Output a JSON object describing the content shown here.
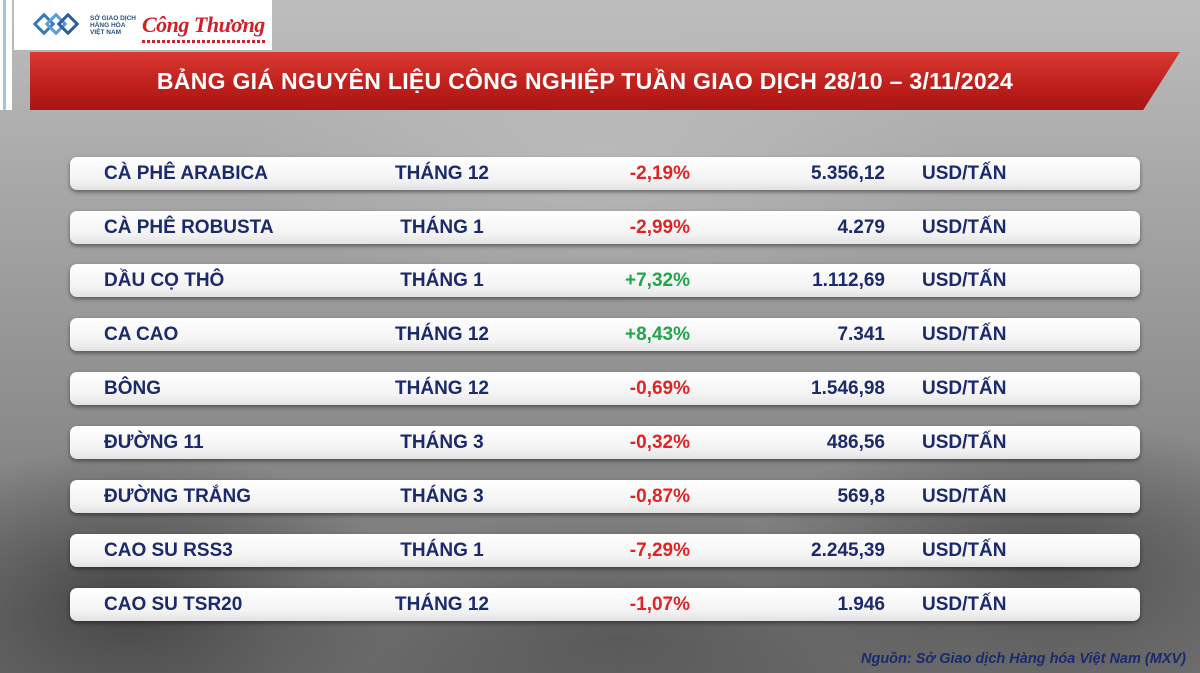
{
  "header": {
    "logo_sgd_text": "SỞ GIAO DỊCH HÀNG HÓA VIỆT NAM",
    "logo_ct": "Công Thương",
    "title": "BẢNG GIÁ NGUYÊN LIỆU CÔNG NGHIỆP TUẦN GIAO DỊCH 28/10 – 3/11/2024",
    "accent_color": "#c0201c"
  },
  "rows": [
    {
      "name": "CÀ PHÊ ARABICA",
      "month": "THÁNG 12",
      "change": "-2,19%",
      "direction": "negative",
      "price": "5.356,12",
      "unit": "USD/TẤN"
    },
    {
      "name": "CÀ PHÊ ROBUSTA",
      "month": "THÁNG 1",
      "change": "-2,99%",
      "direction": "negative",
      "price": "4.279",
      "unit": "USD/TẤN"
    },
    {
      "name": "DẦU CỌ THÔ",
      "month": "THÁNG 1",
      "change": "+7,32%",
      "direction": "positive",
      "price": "1.112,69",
      "unit": "USD/TẤN"
    },
    {
      "name": "CA CAO",
      "month": "THÁNG 12",
      "change": "+8,43%",
      "direction": "positive",
      "price": "7.341",
      "unit": "USD/TẤN"
    },
    {
      "name": "BÔNG",
      "month": "THÁNG 12",
      "change": "-0,69%",
      "direction": "negative",
      "price": "1.546,98",
      "unit": "USD/TẤN"
    },
    {
      "name": "ĐƯỜNG 11",
      "month": "THÁNG 3",
      "change": "-0,32%",
      "direction": "negative",
      "price": "486,56",
      "unit": "USD/TẤN"
    },
    {
      "name": "ĐƯỜNG TRẮNG",
      "month": "THÁNG 3",
      "change": "-0,87%",
      "direction": "negative",
      "price": "569,8",
      "unit": "USD/TẤN"
    },
    {
      "name": "CAO SU RSS3",
      "month": "THÁNG 1",
      "change": "-7,29%",
      "direction": "negative",
      "price": "2.245,39",
      "unit": "USD/TẤN"
    },
    {
      "name": "CAO SU TSR20",
      "month": "THÁNG 12",
      "change": "-1,07%",
      "direction": "negative",
      "price": "1.946",
      "unit": "USD/TẤN"
    }
  ],
  "colors": {
    "negative": "#e02424",
    "positive": "#1ea64a",
    "text": "#1a2a6c"
  },
  "footer": {
    "source": "Nguồn: Sở Giao dịch Hàng hóa Việt Nam (MXV)"
  }
}
